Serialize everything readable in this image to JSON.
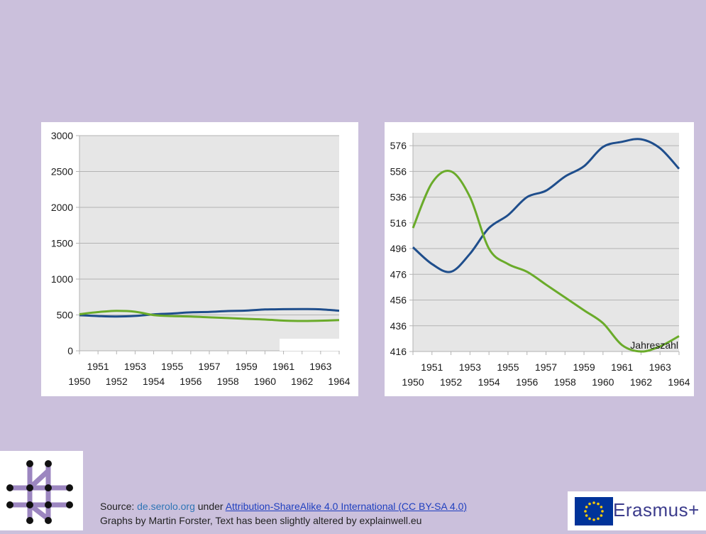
{
  "chart_data": [
    {
      "type": "line",
      "x": [
        1950,
        1951,
        1952,
        1953,
        1954,
        1955,
        1956,
        1957,
        1958,
        1959,
        1960,
        1961,
        1962,
        1963,
        1964
      ],
      "ylim": [
        0,
        3000
      ],
      "yticks": [
        0,
        500,
        1000,
        1500,
        2000,
        2500,
        3000
      ],
      "grid": true,
      "series": [
        {
          "color": "#1f4e8c",
          "values": [
            496,
            484,
            478,
            486,
            508,
            520,
            536,
            542,
            554,
            560,
            576,
            580,
            582,
            578,
            558
          ]
        },
        {
          "color": "#6aab2a",
          "values": [
            510,
            540,
            556,
            545,
            498,
            484,
            478,
            466,
            456,
            446,
            436,
            421,
            416,
            420,
            428
          ]
        }
      ]
    },
    {
      "type": "line",
      "x": [
        1950,
        1951,
        1952,
        1953,
        1954,
        1955,
        1956,
        1957,
        1958,
        1959,
        1960,
        1961,
        1962,
        1963,
        1964
      ],
      "ylim": [
        416,
        586
      ],
      "yticks": [
        416,
        436,
        456,
        476,
        496,
        516,
        536,
        556,
        576
      ],
      "grid": true,
      "annotation": "Jahreszahl",
      "series": [
        {
          "color": "#1f4e8c",
          "values": [
            497,
            484,
            478,
            492,
            512,
            522,
            536,
            541,
            552,
            560,
            575,
            579,
            581,
            574,
            558
          ]
        },
        {
          "color": "#6aab2a",
          "values": [
            512,
            547,
            556,
            536,
            496,
            484,
            478,
            468,
            458,
            448,
            438,
            421,
            416,
            420,
            428
          ]
        }
      ]
    }
  ],
  "footer": {
    "source_prefix": "Source: ",
    "site": "de.serolo.org",
    "under": " under ",
    "license": "Attribution-ShareAlike 4.0 International (CC BY-SA 4.0)",
    "line2": "Graphs by Martin Forster, Text has been slightly altered by explainwell.eu"
  },
  "erasmus": {
    "label": "Erasmus+",
    "flag_color": "#003399",
    "star_color": "#ffcc00"
  }
}
